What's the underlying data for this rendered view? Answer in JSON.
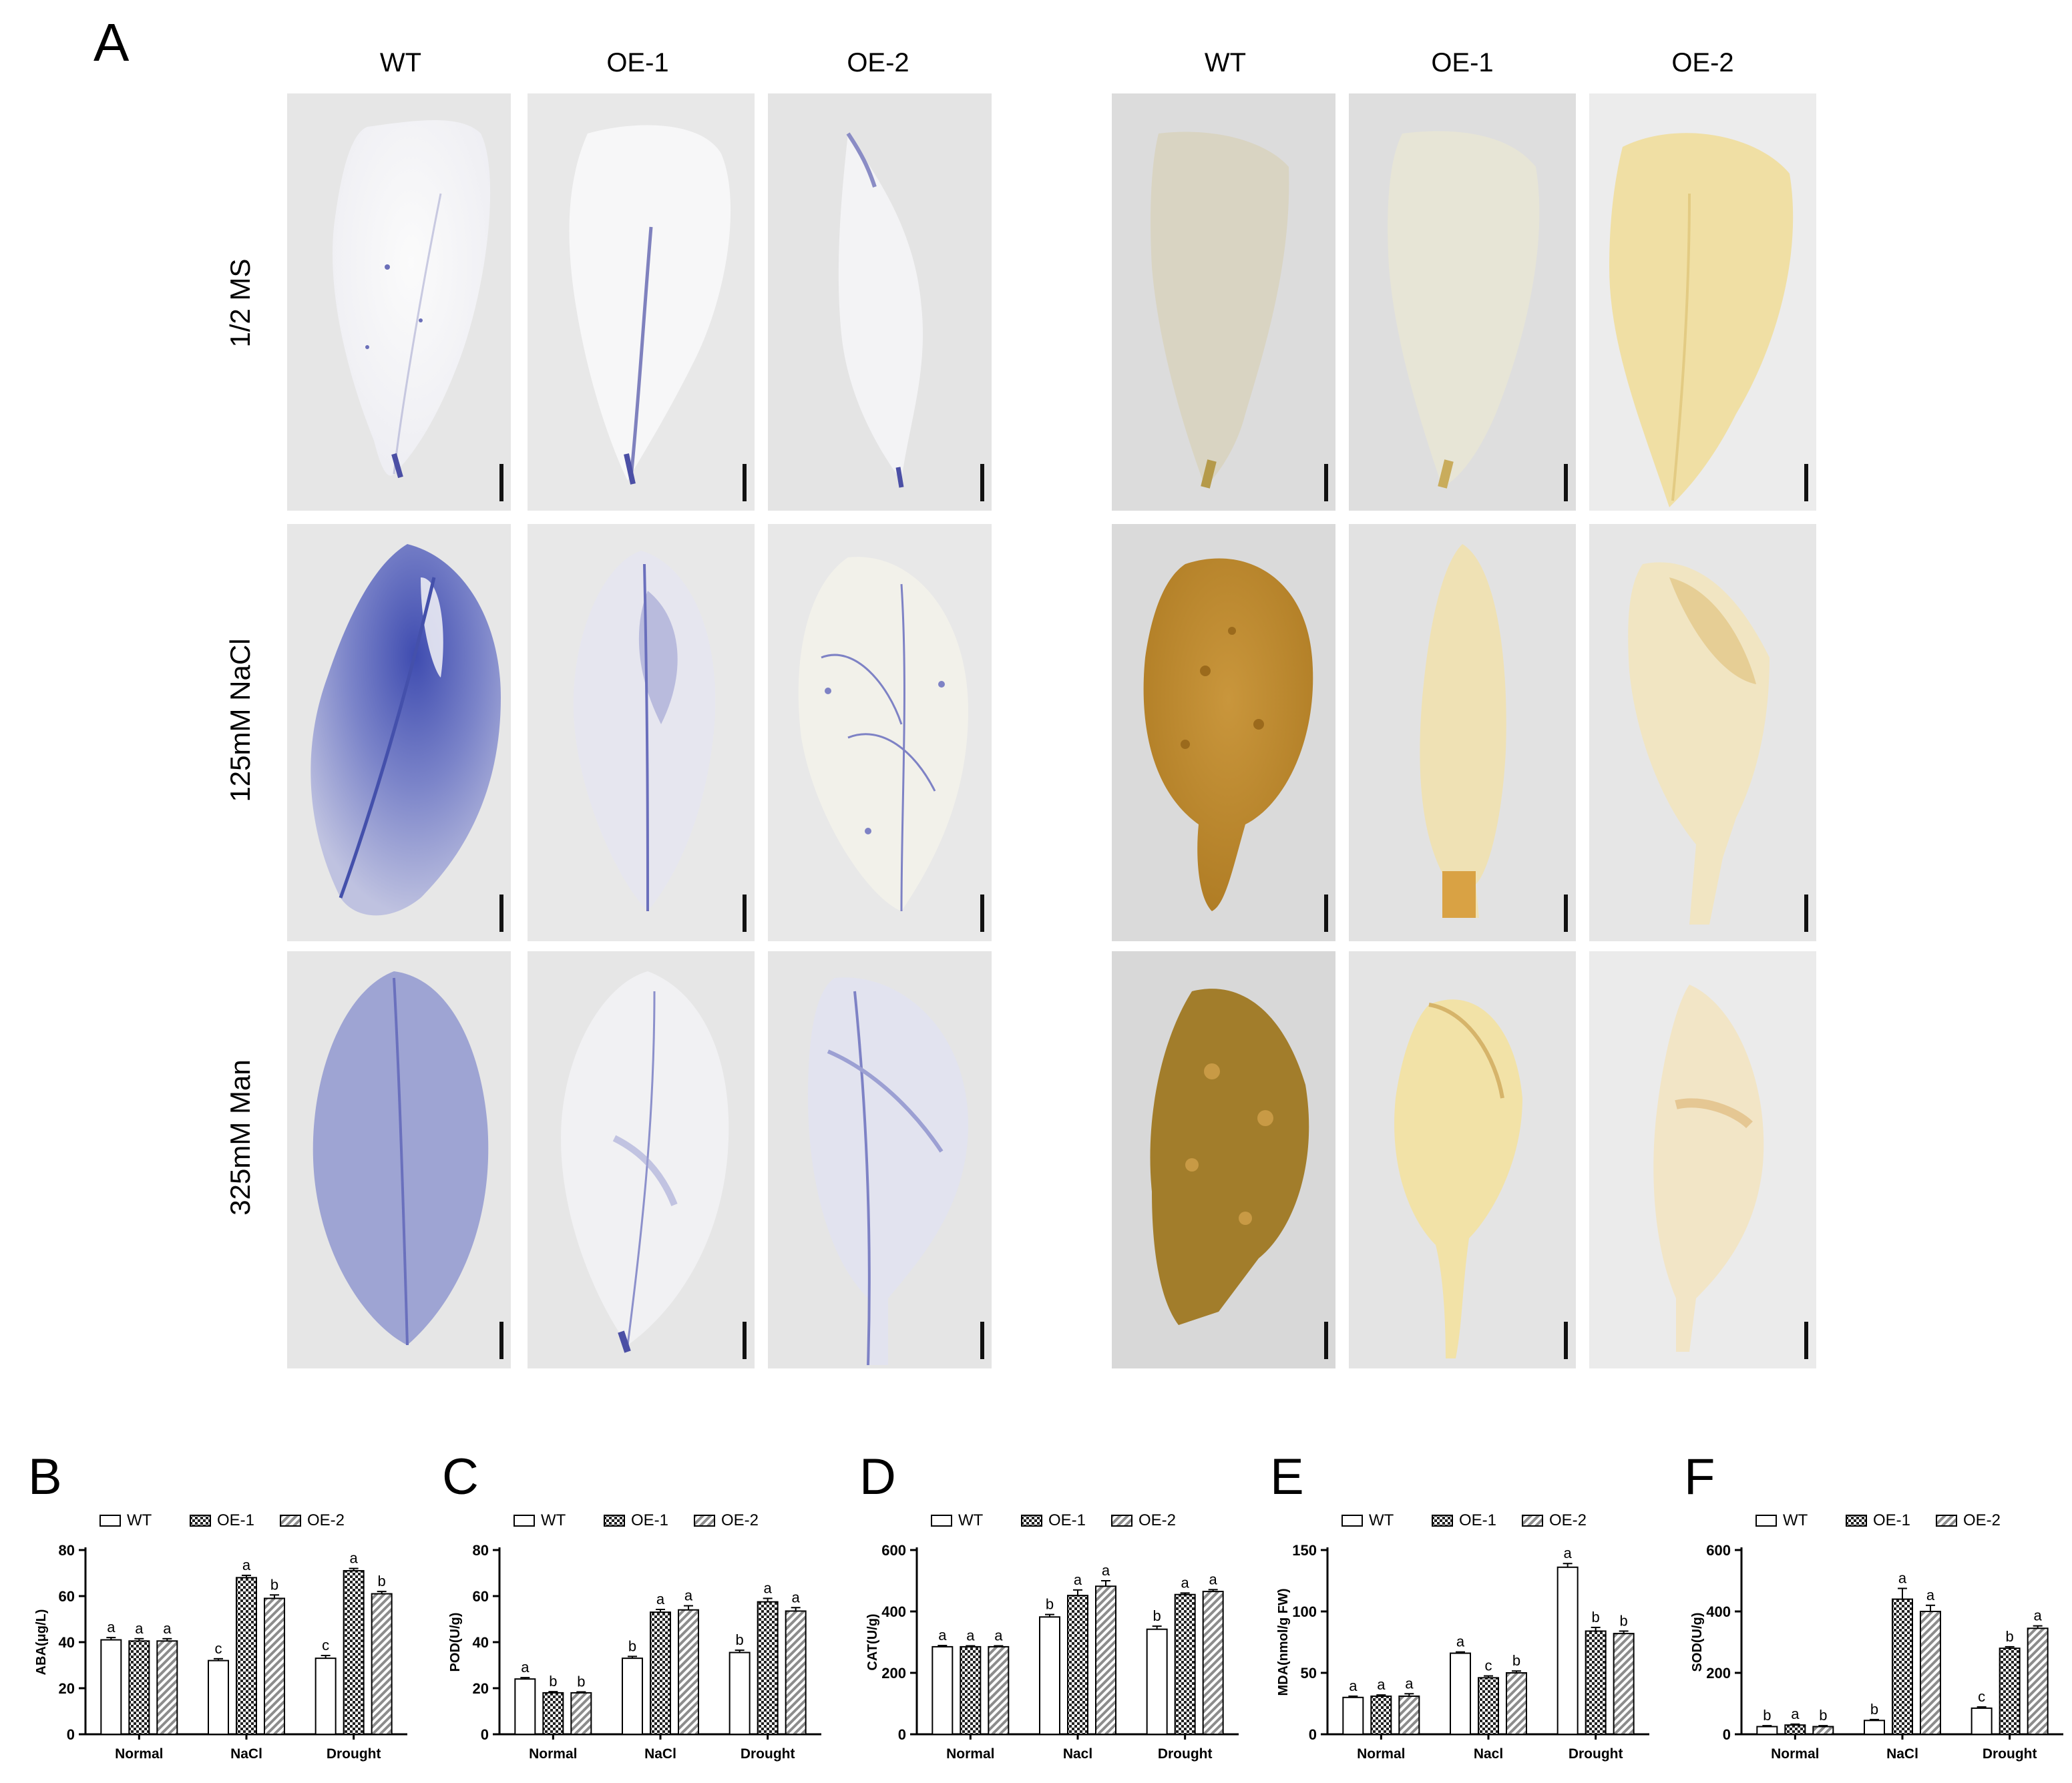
{
  "panel_a": {
    "letter": "A",
    "column_headers": [
      "WT",
      "OE-1",
      "OE-2",
      "WT",
      "OE-1",
      "OE-2"
    ],
    "row_labels": [
      "1/2 MS",
      "125mM NaCl",
      "325mM Man"
    ],
    "staining": {
      "left_group": "blue (NBT)",
      "right_group": "brown (DAB)"
    }
  },
  "chart_data": [
    {
      "panel": "B",
      "type": "bar",
      "title": "",
      "xlabel": "",
      "ylabel": "ABA(μg/L)",
      "ylim": [
        0,
        80
      ],
      "yticks": [
        0,
        20,
        40,
        60,
        80
      ],
      "categories": [
        "Normal",
        "NaCl",
        "Drought"
      ],
      "legend": "top",
      "series": [
        {
          "name": "WT",
          "values": [
            41,
            32,
            33
          ],
          "errors": [
            1,
            0.8,
            1.2
          ],
          "letters": [
            "a",
            "c",
            "c"
          ],
          "pattern": "open"
        },
        {
          "name": "OE-1",
          "values": [
            40.5,
            68,
            71
          ],
          "errors": [
            1,
            1,
            1
          ],
          "letters": [
            "a",
            "a",
            "a"
          ],
          "pattern": "checker"
        },
        {
          "name": "OE-2",
          "values": [
            40.5,
            59,
            61
          ],
          "errors": [
            1,
            1.5,
            1
          ],
          "letters": [
            "a",
            "b",
            "b"
          ],
          "pattern": "hatch"
        }
      ]
    },
    {
      "panel": "C",
      "type": "bar",
      "title": "",
      "xlabel": "",
      "ylabel": "POD(U/g)",
      "ylim": [
        0,
        80
      ],
      "yticks": [
        0,
        20,
        40,
        60,
        80
      ],
      "categories": [
        "Normal",
        "NaCl",
        "Drought"
      ],
      "legend": "top",
      "series": [
        {
          "name": "WT",
          "values": [
            24,
            33,
            35.5
          ],
          "errors": [
            0.6,
            0.8,
            1
          ],
          "letters": [
            "a",
            "b",
            "b"
          ],
          "pattern": "open"
        },
        {
          "name": "OE-1",
          "values": [
            18,
            53,
            57.5
          ],
          "errors": [
            0.5,
            1.2,
            1.5
          ],
          "letters": [
            "b",
            "a",
            "a"
          ],
          "pattern": "checker"
        },
        {
          "name": "OE-2",
          "values": [
            18,
            54,
            53.5
          ],
          "errors": [
            0.4,
            1.8,
            1.5
          ],
          "letters": [
            "b",
            "a",
            "a"
          ],
          "pattern": "hatch"
        }
      ]
    },
    {
      "panel": "D",
      "type": "bar",
      "title": "",
      "xlabel": "",
      "ylabel": "CAT(U/g)",
      "ylim": [
        0,
        600
      ],
      "yticks": [
        0,
        200,
        400,
        600
      ],
      "categories": [
        "Normal",
        "Nacl",
        "Drought"
      ],
      "legend": "top",
      "series": [
        {
          "name": "WT",
          "values": [
            285,
            382,
            342
          ],
          "errors": [
            4,
            8,
            10
          ],
          "letters": [
            "a",
            "b",
            "b"
          ],
          "pattern": "open"
        },
        {
          "name": "OE-1",
          "values": [
            285,
            452,
            455
          ],
          "errors": [
            3,
            18,
            5
          ],
          "letters": [
            "a",
            "a",
            "a"
          ],
          "pattern": "checker"
        },
        {
          "name": "OE-2",
          "values": [
            285,
            482,
            465
          ],
          "errors": [
            3,
            18,
            6
          ],
          "letters": [
            "a",
            "a",
            "a"
          ],
          "pattern": "hatch"
        }
      ]
    },
    {
      "panel": "E",
      "type": "bar",
      "title": "",
      "xlabel": "",
      "ylabel": "MDA(nmol/g FW)",
      "ylim": [
        0,
        150
      ],
      "yticks": [
        0,
        50,
        100,
        150
      ],
      "categories": [
        "Normal",
        "Nacl",
        "Drought"
      ],
      "legend": "top",
      "series": [
        {
          "name": "WT",
          "values": [
            30,
            66,
            136
          ],
          "errors": [
            1,
            1,
            3
          ],
          "letters": [
            "a",
            "a",
            "a"
          ],
          "pattern": "open"
        },
        {
          "name": "OE-1",
          "values": [
            31,
            46,
            84
          ],
          "errors": [
            1,
            1.5,
            3
          ],
          "letters": [
            "a",
            "c",
            "b"
          ],
          "pattern": "checker"
        },
        {
          "name": "OE-2",
          "values": [
            31,
            50,
            82
          ],
          "errors": [
            2,
            1.5,
            2
          ],
          "letters": [
            "a",
            "b",
            "b"
          ],
          "pattern": "hatch"
        }
      ]
    },
    {
      "panel": "F",
      "type": "bar",
      "title": "",
      "xlabel": "",
      "ylabel": "SOD(U/g)",
      "ylim": [
        0,
        600
      ],
      "yticks": [
        0,
        200,
        400,
        600
      ],
      "categories": [
        "Normal",
        "NaCl",
        "Drought"
      ],
      "legend": "top",
      "series": [
        {
          "name": "WT",
          "values": [
            25,
            45,
            85
          ],
          "errors": [
            3,
            3,
            4
          ],
          "letters": [
            "b",
            "b",
            "c"
          ],
          "pattern": "open"
        },
        {
          "name": "OE-1",
          "values": [
            30,
            440,
            280
          ],
          "errors": [
            3,
            35,
            5
          ],
          "letters": [
            "a",
            "a",
            "b"
          ],
          "pattern": "checker"
        },
        {
          "name": "OE-2",
          "values": [
            25,
            400,
            345
          ],
          "errors": [
            3,
            20,
            8
          ],
          "letters": [
            "b",
            "a",
            "a"
          ],
          "pattern": "hatch"
        }
      ]
    }
  ]
}
